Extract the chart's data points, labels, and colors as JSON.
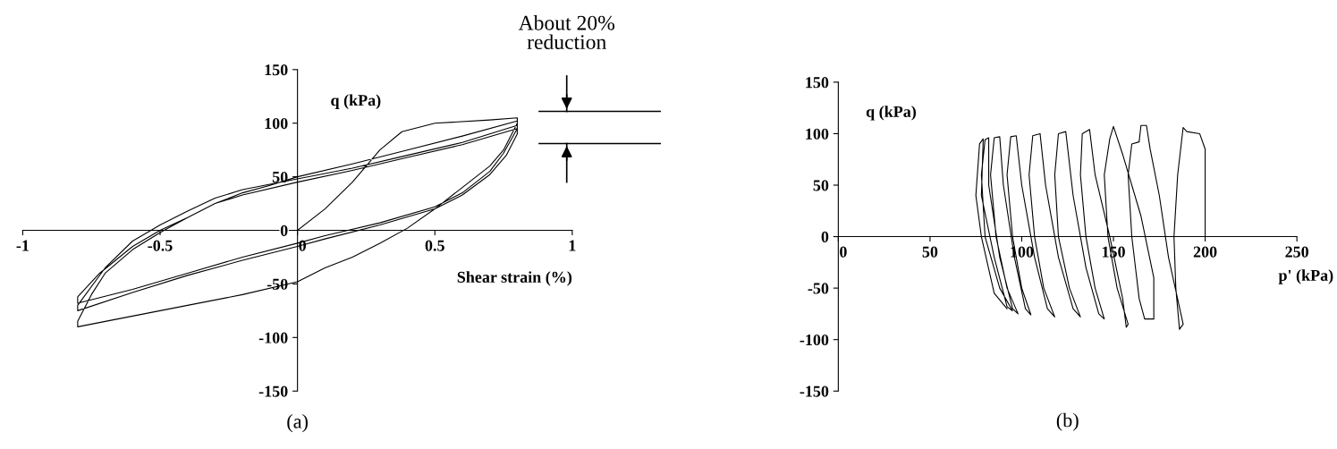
{
  "chart_data": [
    {
      "type": "line",
      "xlabel": "Shear strain (%)",
      "ylabel": "q (kPa)",
      "annotations": [
        "About 20% reduction",
        "(a)"
      ],
      "xlim": [
        -1,
        1
      ],
      "xticks": [
        -1,
        -0.5,
        0,
        0.5,
        1
      ],
      "ylim": [
        -150,
        150
      ],
      "yticks": [
        -150,
        -100,
        -50,
        0,
        50,
        100,
        150
      ],
      "grid": false,
      "marker": "none",
      "line_style": "solid",
      "series": [
        {
          "color": "#000000",
          "x": [
            0,
            0.1,
            0.2,
            0.3,
            0.38,
            0.5,
            0.7,
            0.8,
            0.8,
            0.75,
            0.7,
            0.6,
            0.5,
            0.4,
            0.3,
            0.2,
            0.1,
            0,
            -0.2,
            -0.4,
            -0.6,
            -0.8,
            -0.8,
            -0.75,
            -0.7,
            -0.6,
            -0.5,
            -0.4,
            -0.3,
            -0.2,
            -0.1,
            0,
            0.2,
            0.4,
            0.6,
            0.8,
            0.8,
            0.75,
            0.7,
            0.6,
            0.5,
            0.3,
            0.1,
            0,
            -0.2,
            -0.4,
            -0.6,
            -0.8,
            -0.8,
            -0.72,
            -0.6,
            -0.5,
            -0.4,
            -0.3,
            -0.2,
            0,
            0.2,
            0.4,
            0.6,
            0.8,
            0.8,
            0.76,
            0.7,
            0.6,
            0.5,
            0.3,
            0.1,
            0,
            -0.2,
            -0.4,
            -0.6,
            -0.8,
            -0.8,
            -0.7,
            -0.6,
            -0.5,
            -0.4,
            -0.3,
            -0.2,
            0,
            0.2,
            0.4,
            0.6,
            0.8
          ],
          "values": [
            0,
            20,
            45,
            75,
            92,
            100,
            103,
            105,
            100,
            75,
            60,
            40,
            20,
            2,
            -12,
            -25,
            -35,
            -48,
            -60,
            -70,
            -80,
            -90,
            -85,
            -60,
            -40,
            -18,
            -2,
            12,
            25,
            35,
            42,
            50,
            62,
            75,
            88,
            102,
            95,
            72,
            55,
            35,
            22,
            7,
            -5,
            -12,
            -25,
            -40,
            -55,
            -68,
            -62,
            -40,
            -15,
            0,
            12,
            25,
            33,
            45,
            56,
            68,
            80,
            95,
            90,
            70,
            52,
            33,
            20,
            5,
            -8,
            -15,
            -28,
            -42,
            -58,
            -75,
            -70,
            -35,
            -10,
            5,
            18,
            30,
            38,
            48,
            58,
            70,
            82,
            98
          ]
        }
      ]
    },
    {
      "type": "line",
      "xlabel": "p' (kPa)",
      "ylabel": "q (kPa)",
      "annotations": [
        "(b)"
      ],
      "xlim": [
        0,
        250
      ],
      "xticks": [
        0,
        50,
        100,
        150,
        200,
        250
      ],
      "ylim": [
        -150,
        150
      ],
      "yticks": [
        -150,
        -100,
        -50,
        0,
        50,
        100,
        150
      ],
      "grid": false,
      "marker": "none",
      "line_style": "solid",
      "series": [
        {
          "color": "#000000",
          "x": [
            200,
            200,
            200,
            197,
            190,
            188,
            185,
            183,
            184,
            186,
            188,
            180,
            175,
            170,
            168,
            165,
            164,
            160,
            158,
            160,
            164,
            167,
            172,
            172,
            165,
            155,
            150,
            148,
            145,
            147,
            152,
            158,
            157,
            155,
            148,
            140,
            137,
            133,
            132,
            135,
            140,
            145,
            142,
            135,
            128,
            124,
            120,
            118,
            120,
            126,
            132,
            128,
            120,
            113,
            110,
            106,
            104,
            107,
            112,
            118,
            114,
            107,
            100,
            97,
            94,
            92,
            95,
            100,
            105,
            102,
            96,
            90,
            88,
            85,
            83,
            86,
            92,
            98,
            95,
            88,
            82,
            82,
            80,
            78,
            80,
            88,
            95,
            92,
            85,
            78,
            79,
            77,
            75,
            78,
            85,
            92
          ],
          "values": [
            0,
            60,
            85,
            100,
            102,
            106,
            60,
            0,
            -50,
            -90,
            -85,
            -20,
            40,
            85,
            108,
            108,
            92,
            90,
            60,
            0,
            -60,
            -80,
            -80,
            -40,
            20,
            80,
            107,
            95,
            60,
            0,
            -50,
            -85,
            -88,
            -60,
            0,
            60,
            104,
            100,
            60,
            0,
            -50,
            -80,
            -75,
            -30,
            40,
            102,
            100,
            60,
            0,
            -50,
            -78,
            -70,
            -20,
            50,
            100,
            98,
            60,
            0,
            -50,
            -78,
            -70,
            -20,
            50,
            98,
            97,
            60,
            0,
            -50,
            -76,
            -70,
            -20,
            50,
            97,
            96,
            60,
            0,
            -50,
            -75,
            -70,
            -20,
            50,
            96,
            94,
            60,
            0,
            -50,
            -72,
            -68,
            -20,
            40,
            95,
            90,
            40,
            0,
            -55,
            -70
          ]
        }
      ]
    }
  ]
}
